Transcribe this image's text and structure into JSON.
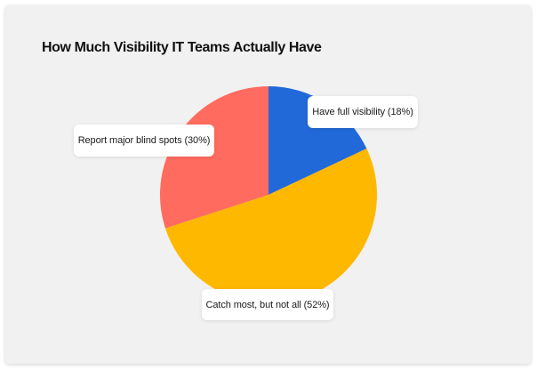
{
  "chart_data": {
    "type": "pie",
    "title": "How Much Visibility IT Teams Actually Have",
    "categories": [
      "Have full visibility",
      "Catch most, but not all",
      "Report major blind spots"
    ],
    "values": [
      18,
      52,
      30
    ],
    "unit": "%",
    "colors": [
      "#2169d8",
      "#ffb800",
      "#ff6b5e"
    ],
    "labels": [
      "Have full visibility (18%)",
      "Catch most, but not all (52%)",
      "Report major blind spots (30%)"
    ],
    "start_angle": "12 o'clock",
    "direction": "clockwise",
    "legend": "none (callout labels)"
  },
  "page": {
    "background": "#ffffff",
    "card_background": "#f1f1f1"
  }
}
